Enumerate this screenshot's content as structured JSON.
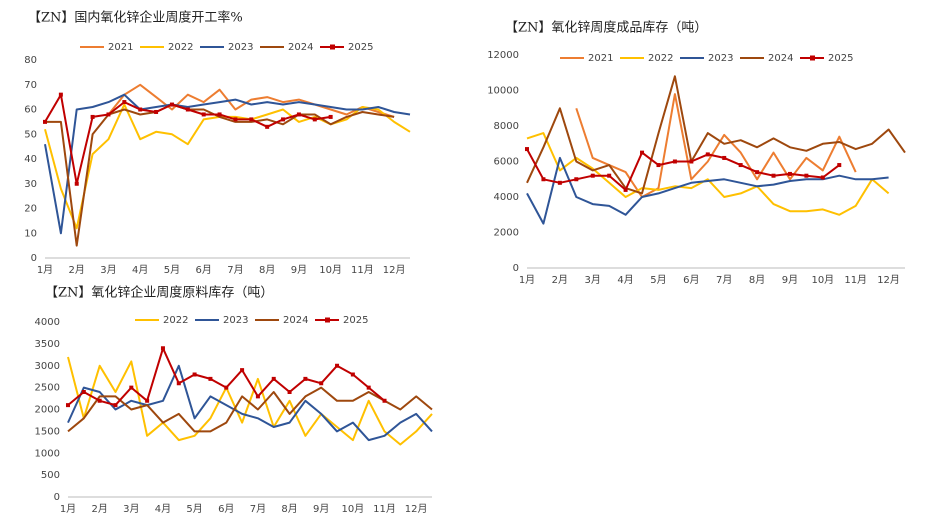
{
  "chart_data": [
    {
      "type": "line",
      "title": "【ZN】国内氧化锌企业周度开工率%",
      "categories": [
        "1月",
        null,
        "2月",
        null,
        "3月",
        null,
        "4月",
        null,
        "5月",
        null,
        "6月",
        null,
        "7月",
        null,
        "8月",
        null,
        "9月",
        null,
        "10月",
        null,
        "11月",
        null,
        "12月",
        null
      ],
      "ylim": [
        0,
        80
      ],
      "yticks": [
        0,
        10,
        20,
        30,
        40,
        50,
        60,
        70,
        80
      ],
      "legend": "top",
      "series": [
        {
          "name": "2021",
          "color": "#ED7D31",
          "values": [
            null,
            null,
            null,
            null,
            58,
            66,
            70,
            65,
            60,
            66,
            63,
            68,
            60,
            64,
            65,
            63,
            64,
            62,
            60,
            58,
            61,
            59,
            57,
            null
          ]
        },
        {
          "name": "2022",
          "color": "#FFC000",
          "values": [
            52,
            28,
            12,
            42,
            48,
            62,
            48,
            51,
            50,
            46,
            56,
            57,
            57,
            56,
            58,
            60,
            55,
            57,
            54,
            56,
            61,
            60,
            55,
            51
          ]
        },
        {
          "name": "2023",
          "color": "#2F5597",
          "values": [
            46,
            10,
            60,
            61,
            63,
            66,
            60,
            61,
            62,
            61,
            62,
            63,
            64,
            62,
            63,
            62,
            63,
            62,
            61,
            60,
            60,
            61,
            59,
            58
          ]
        },
        {
          "name": "2024",
          "color": "#9E480E",
          "values": [
            55,
            55,
            5,
            50,
            58,
            60,
            58,
            59,
            62,
            60,
            60,
            57,
            55,
            55,
            56,
            54,
            58,
            58,
            54,
            57,
            59,
            58,
            57,
            null
          ]
        },
        {
          "name": "2025",
          "color": "#C00000",
          "marker": "square",
          "values": [
            55,
            66,
            30,
            57,
            58,
            63,
            60,
            59,
            62,
            60,
            58,
            58,
            56,
            56,
            53,
            56,
            58,
            56,
            57,
            null,
            null,
            null,
            null,
            null
          ]
        }
      ]
    },
    {
      "type": "line",
      "title": "【ZN】氧化锌周度成品库存（吨）",
      "categories": [
        "1月",
        null,
        "2月",
        null,
        "3月",
        null,
        "4月",
        null,
        "5月",
        null,
        "6月",
        null,
        "7月",
        null,
        "8月",
        null,
        "9月",
        null,
        "10月",
        null,
        "11月",
        null,
        "12月",
        null
      ],
      "ylim": [
        0,
        12000
      ],
      "yticks": [
        0,
        2000,
        4000,
        6000,
        8000,
        10000,
        12000
      ],
      "legend": "top",
      "series": [
        {
          "name": "2021",
          "color": "#ED7D31",
          "values": [
            null,
            null,
            null,
            9000,
            6200,
            5800,
            5400,
            4000,
            4500,
            9800,
            5000,
            6000,
            7500,
            6500,
            5000,
            6500,
            5000,
            6200,
            5500,
            7400,
            5400,
            null,
            null,
            null
          ]
        },
        {
          "name": "2022",
          "color": "#FFC000",
          "values": [
            7300,
            7600,
            5500,
            6200,
            5600,
            4800,
            4000,
            4500,
            4400,
            4600,
            4500,
            5000,
            4000,
            4200,
            4600,
            3600,
            3200,
            3200,
            3300,
            3000,
            3500,
            5000,
            4200,
            null
          ]
        },
        {
          "name": "2023",
          "color": "#2F5597",
          "values": [
            4200,
            2500,
            6200,
            4000,
            3600,
            3500,
            3000,
            4000,
            4200,
            4500,
            4800,
            4900,
            5000,
            4800,
            4600,
            4700,
            4900,
            5000,
            5000,
            5200,
            5000,
            5000,
            5100,
            null
          ]
        },
        {
          "name": "2024",
          "color": "#9E480E",
          "values": [
            4800,
            6800,
            9000,
            6000,
            5500,
            5800,
            4500,
            4200,
            7600,
            10800,
            6000,
            7600,
            7000,
            7200,
            6800,
            7300,
            6800,
            6600,
            7000,
            7100,
            6700,
            7000,
            7800,
            6500
          ]
        },
        {
          "name": "2025",
          "color": "#C00000",
          "marker": "square",
          "values": [
            6700,
            5000,
            4800,
            5000,
            5200,
            5200,
            4400,
            6500,
            5800,
            6000,
            6000,
            6400,
            6200,
            5800,
            5400,
            5200,
            5300,
            5200,
            5100,
            5800,
            null,
            null,
            null,
            null
          ]
        }
      ]
    },
    {
      "type": "line",
      "title": "【ZN】氧化锌企业周度原料库存（吨）",
      "categories": [
        "1月",
        null,
        "2月",
        null,
        "3月",
        null,
        "4月",
        null,
        "5月",
        null,
        "6月",
        null,
        "7月",
        null,
        "8月",
        null,
        "9月",
        null,
        "10月",
        null,
        "11月",
        null,
        "12月",
        null
      ],
      "ylim": [
        0,
        4000
      ],
      "yticks": [
        0,
        500,
        1000,
        1500,
        2000,
        2500,
        3000,
        3500,
        4000
      ],
      "legend": "top",
      "series": [
        {
          "name": "2022",
          "color": "#FFC000",
          "values": [
            3200,
            1800,
            3000,
            2400,
            3100,
            1400,
            1700,
            1300,
            1400,
            1800,
            2500,
            1700,
            2700,
            1600,
            2200,
            1400,
            1900,
            1600,
            1300,
            2200,
            1500,
            1200,
            1500,
            1900
          ]
        },
        {
          "name": "2023",
          "color": "#2F5597",
          "values": [
            1700,
            2500,
            2400,
            2000,
            2200,
            2100,
            2200,
            3000,
            1800,
            2300,
            2100,
            1900,
            1800,
            1600,
            1700,
            2200,
            1900,
            1500,
            1700,
            1300,
            1400,
            1700,
            1900,
            1500
          ]
        },
        {
          "name": "2024",
          "color": "#9E480E",
          "values": [
            1500,
            1800,
            2300,
            2300,
            2000,
            2100,
            1700,
            1900,
            1500,
            1500,
            1700,
            2300,
            2000,
            2400,
            1900,
            2300,
            2500,
            2200,
            2200,
            2400,
            2200,
            2000,
            2300,
            2000
          ]
        },
        {
          "name": "2025",
          "color": "#C00000",
          "marker": "square",
          "values": [
            2100,
            2400,
            2200,
            2100,
            2500,
            2200,
            3400,
            2600,
            2800,
            2700,
            2500,
            2900,
            2300,
            2700,
            2400,
            2700,
            2600,
            3000,
            2800,
            2500,
            2200,
            null,
            null,
            null
          ]
        }
      ]
    }
  ]
}
